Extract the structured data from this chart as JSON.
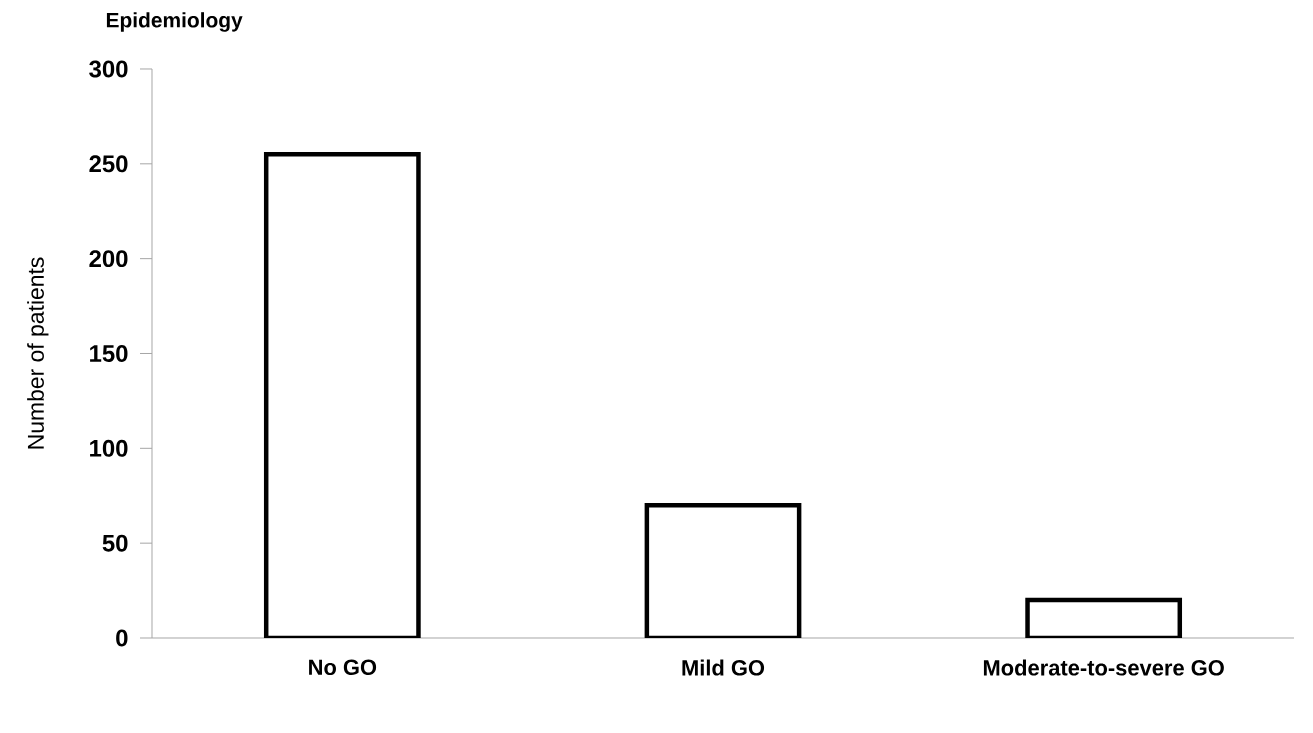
{
  "chart_data": {
    "type": "bar",
    "title": "Epidemiology",
    "ylabel": "Number of patients",
    "categories": [
      "No GO",
      "Mild GO",
      "Moderate-to-severe GO"
    ],
    "values": [
      255,
      70,
      20
    ],
    "color": "#ffffff",
    "ylim": [
      0,
      300
    ],
    "yticks": [
      0,
      50,
      100,
      150,
      200,
      250,
      300
    ],
    "grid": false
  }
}
